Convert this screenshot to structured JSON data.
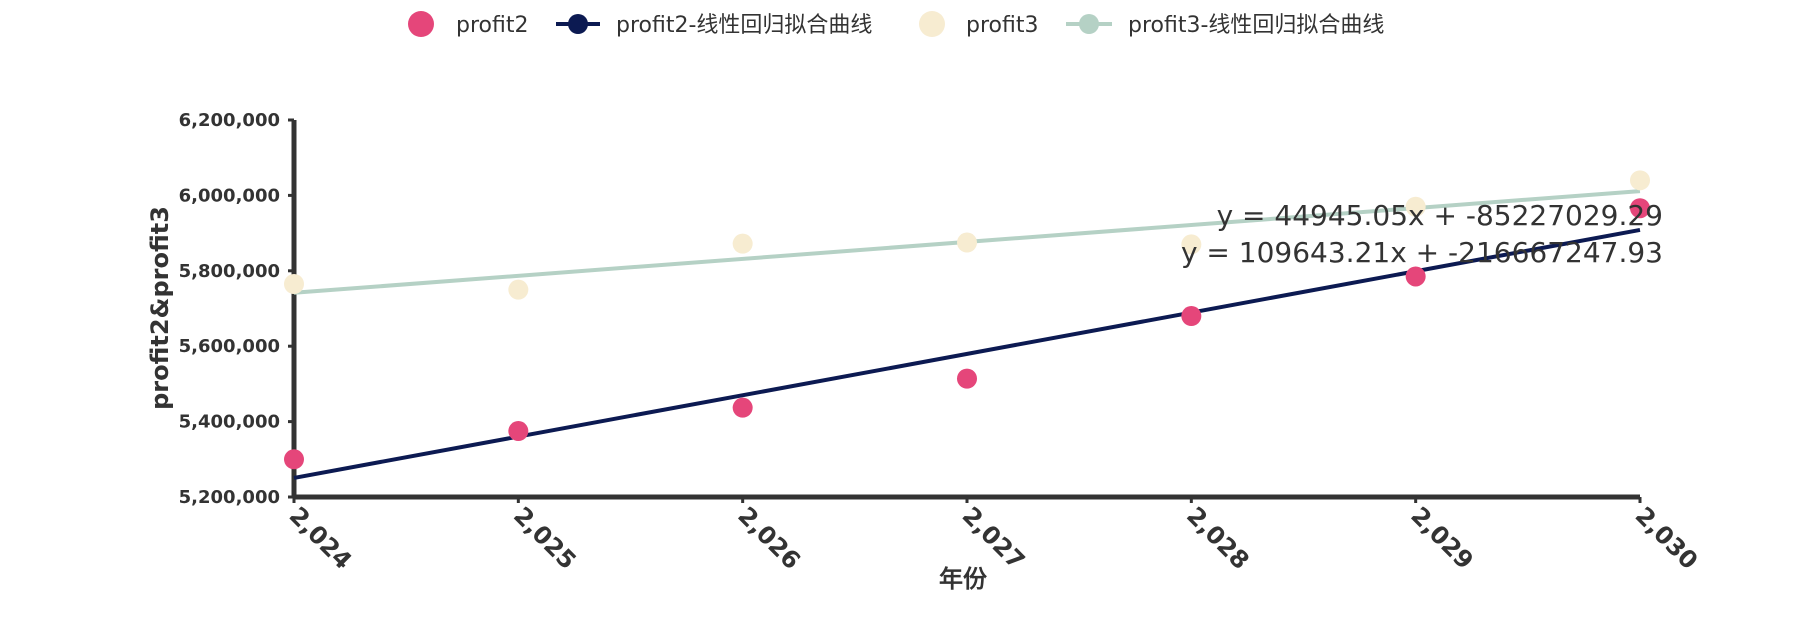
{
  "chart_data": {
    "type": "scatter",
    "xlabel": "年份",
    "ylabel": "profit2&profit3",
    "xlim": [
      2024,
      2030
    ],
    "ylim": [
      5200000,
      6200000
    ],
    "x_ticks": [
      "2,024",
      "2,025",
      "2,026",
      "2,027",
      "2,028",
      "2,029",
      "2,030"
    ],
    "y_ticks": [
      "5,200,000",
      "5,400,000",
      "5,600,000",
      "5,800,000",
      "6,000,000",
      "6,200,000"
    ],
    "x": [
      2024,
      2025,
      2026,
      2027,
      2028,
      2029,
      2030
    ],
    "series": [
      {
        "name": "profit2",
        "kind": "scatter",
        "color": "#e5467a",
        "values": [
          5300000,
          5375000,
          5437000,
          5514000,
          5680000,
          5785000,
          5966000
        ]
      },
      {
        "name": "profit2-线性回归拟合曲线",
        "kind": "line",
        "color": "#0c1a52",
        "slope": 109643.21,
        "intercept": -216667247.93
      },
      {
        "name": "profit3",
        "kind": "scatter",
        "color": "#f7ecd1",
        "values": [
          5765000,
          5750000,
          5872000,
          5875000,
          5870000,
          5970000,
          6040000
        ]
      },
      {
        "name": "profit3-线性回归拟合曲线",
        "kind": "line",
        "color": "#b5d1c5",
        "slope": 44945.05,
        "intercept": -85227029.29
      }
    ],
    "equations": [
      "y = 44945.05x + -85227029.29",
      "y = 109643.21x + -216667247.93"
    ],
    "legend_position": "top-center"
  }
}
